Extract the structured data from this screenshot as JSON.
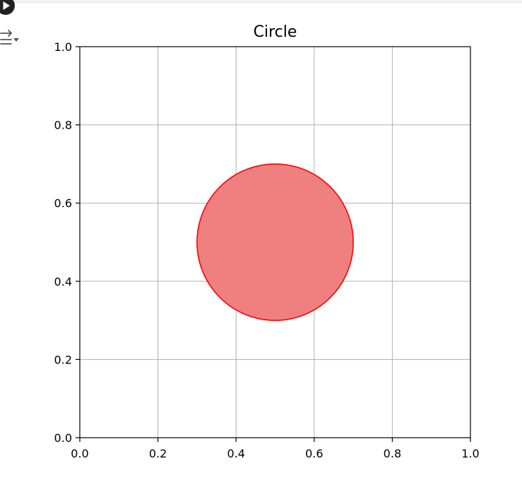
{
  "cell": {
    "run_button_icon": "play-circle-icon",
    "output_toggle_icon": "output-collapse-icon"
  },
  "chart_data": {
    "type": "scatter",
    "title": "Circle",
    "xlabel": "",
    "ylabel": "",
    "xlim": [
      0.0,
      1.0
    ],
    "ylim": [
      0.0,
      1.0
    ],
    "grid": true,
    "x_ticks": [
      "0.0",
      "0.2",
      "0.4",
      "0.6",
      "0.8",
      "1.0"
    ],
    "y_ticks": [
      "0.0",
      "0.2",
      "0.4",
      "0.6",
      "0.8",
      "1.0"
    ],
    "shapes": [
      {
        "shape": "circle",
        "center": [
          0.5,
          0.5
        ],
        "radius": 0.2,
        "fill_color": "#f08080",
        "edge_color": "#ff0000"
      }
    ]
  }
}
